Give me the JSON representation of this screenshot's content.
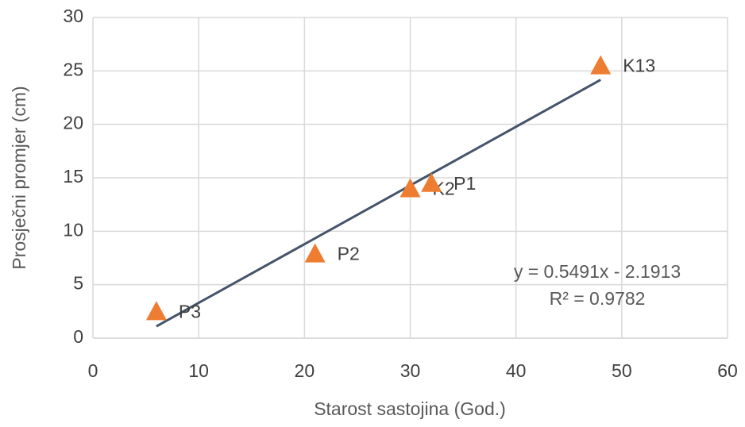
{
  "chart_data": {
    "type": "scatter",
    "x_label": "Starost sastojina (God.)",
    "y_label": "Prosječni promjer (cm)",
    "series": [
      {
        "name": "Prosječni promjer",
        "color": "#ed7d31",
        "labels": [
          "P3",
          "P2",
          "K2",
          "P1",
          "K13"
        ],
        "x": [
          6,
          21,
          30,
          32,
          48
        ],
        "values": [
          2.5,
          7.9,
          14,
          14.5,
          25.5
        ]
      }
    ],
    "trendline": {
      "slope": 0.5491,
      "intercept": -2.1913,
      "color": "#44546a",
      "equation": "y = 0.5491x - 2.1913",
      "r2": "R² = 0.9782"
    },
    "xlim": [
      0,
      60
    ],
    "xticks": [
      0,
      10,
      20,
      30,
      40,
      50,
      60
    ],
    "ylim": [
      0,
      30
    ],
    "yticks": [
      0,
      5,
      10,
      15,
      20,
      25,
      30
    ],
    "grid": true
  }
}
